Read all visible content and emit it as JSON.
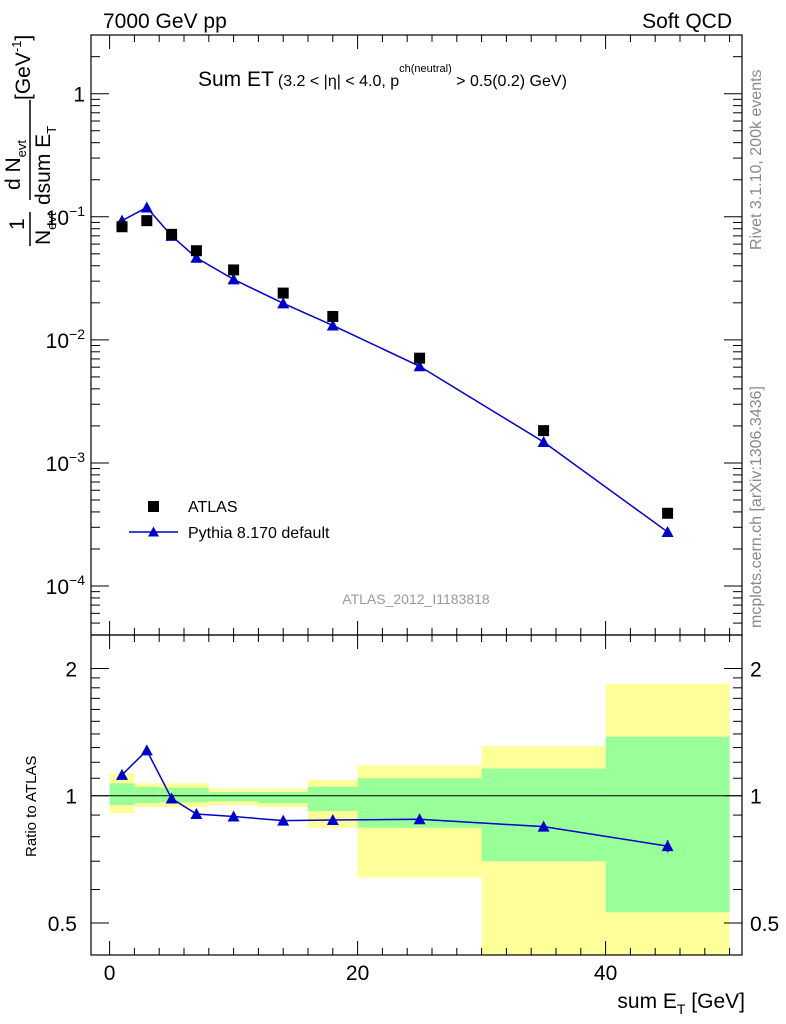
{
  "header": {
    "left": "7000 GeV pp",
    "right": "Soft QCD"
  },
  "side_labels": {
    "rivet": "Rivet 3.1.10,  200k events",
    "mcplots": "mcplots.cern.ch [arXiv:1306.3436]"
  },
  "colors": {
    "data": "#000000",
    "mc": "#0000cc",
    "band_inner": "#99ff99",
    "band_outer": "#ffff99",
    "watermark": "#999999"
  },
  "chart_data": [
    {
      "type": "scatter",
      "title": {
        "main": "Sum ET",
        "p1": "(3.2 < ",
        "eta": "|η|",
        "p2": " < 4.0, p",
        "sup": "ch(neutral)",
        "p3": " > 0.5(0.2) GeV)"
      },
      "ylabel": {
        "one": "1",
        "n": "N",
        "evt": "evt",
        "dn": "d N",
        "dsum": "dsum E",
        "t": "T",
        "unit": "[GeV",
        "unit_exp": "-1",
        "unit_close": "]"
      },
      "yscale": "log",
      "ylim": [
        4e-05,
        3
      ],
      "xlim": [
        -1.5,
        51
      ],
      "yticks": [
        {
          "value": 1,
          "base": "1",
          "exp": ""
        },
        {
          "value": 0.1,
          "base": "10",
          "exp": "−1"
        },
        {
          "value": 0.01,
          "base": "10",
          "exp": "−2"
        },
        {
          "value": 0.001,
          "base": "10",
          "exp": "−3"
        },
        {
          "value": 0.0001,
          "base": "10",
          "exp": "−4"
        }
      ],
      "watermark": "ATLAS_2012_I1183818",
      "legend_position": "bottom-left",
      "series": [
        {
          "name": "ATLAS",
          "marker": "square",
          "x": [
            1,
            3,
            5,
            7,
            10,
            14,
            18,
            25,
            35,
            45
          ],
          "y": [
            0.083,
            0.093,
            0.072,
            0.053,
            0.037,
            0.024,
            0.0155,
            0.0071,
            0.00183,
            0.00039
          ]
        },
        {
          "name": "Pythia 8.170 default",
          "marker": "triangle",
          "x": [
            1,
            3,
            5,
            7,
            10,
            14,
            18,
            25,
            35,
            45
          ],
          "y": [
            0.093,
            0.119,
            0.07,
            0.0465,
            0.031,
            0.0198,
            0.0131,
            0.0061,
            0.00148,
            0.000275
          ]
        }
      ]
    },
    {
      "type": "line",
      "ylabel": "Ratio to ATLAS",
      "xlabel": {
        "main": "sum E",
        "sub": "T",
        "unit": " [GeV]"
      },
      "yscale": "log",
      "ylim": [
        0.42,
        2.4
      ],
      "xlim": [
        -1.5,
        51
      ],
      "xticks": [
        0,
        20,
        40
      ],
      "yticks": [
        0.5,
        1,
        2
      ],
      "reference_line": 1,
      "bins": [
        {
          "x0": 0,
          "x1": 2,
          "inner": [
            0.95,
            1.07
          ],
          "outer": [
            0.91,
            1.13
          ]
        },
        {
          "x0": 2,
          "x1": 4,
          "inner": [
            0.96,
            1.05
          ],
          "outer": [
            0.94,
            1.07
          ]
        },
        {
          "x0": 4,
          "x1": 8,
          "inner": [
            0.965,
            1.045
          ],
          "outer": [
            0.94,
            1.07
          ]
        },
        {
          "x0": 8,
          "x1": 12,
          "inner": [
            0.97,
            1.02
          ],
          "outer": [
            0.95,
            1.04
          ]
        },
        {
          "x0": 12,
          "x1": 16,
          "inner": [
            0.96,
            1.02
          ],
          "outer": [
            0.94,
            1.04
          ]
        },
        {
          "x0": 16,
          "x1": 20,
          "inner": [
            0.92,
            1.05
          ],
          "outer": [
            0.84,
            1.09
          ]
        },
        {
          "x0": 20,
          "x1": 30,
          "inner": [
            0.84,
            1.1
          ],
          "outer": [
            0.64,
            1.18
          ]
        },
        {
          "x0": 30,
          "x1": 40,
          "inner": [
            0.7,
            1.16
          ],
          "outer": [
            0.42,
            1.31
          ]
        },
        {
          "x0": 40,
          "x1": 50,
          "inner": [
            0.53,
            1.38
          ],
          "outer": [
            0.42,
            1.84
          ]
        }
      ],
      "series": [
        {
          "name": "Pythia 8.170 default",
          "x": [
            1,
            3,
            5,
            7,
            10,
            14,
            18,
            25,
            35,
            45
          ],
          "y": [
            1.12,
            1.28,
            0.985,
            0.905,
            0.893,
            0.873,
            0.876,
            0.88,
            0.845,
            0.76
          ],
          "err": [
            0,
            0,
            0,
            0,
            0,
            0,
            0,
            0,
            0,
            0.025
          ]
        }
      ]
    }
  ]
}
